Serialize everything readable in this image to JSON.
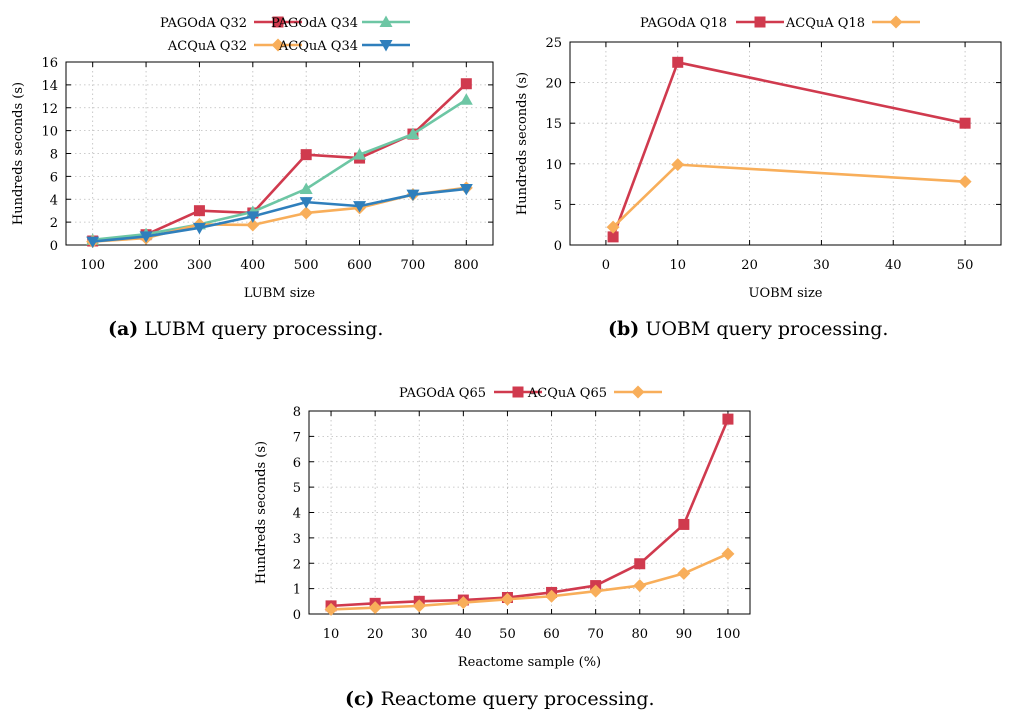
{
  "figure": {
    "captions": [
      {
        "tag": "(a)",
        "text": "LUBM query processing."
      },
      {
        "tag": "(b)",
        "text": "UOBM query processing."
      },
      {
        "tag": "(c)",
        "text": "Reactome query processing."
      }
    ]
  },
  "chart_data": [
    {
      "id": "a",
      "type": "line",
      "title": "",
      "xlabel": "LUBM size",
      "ylabel": "Hundreds seconds (s)",
      "x": [
        100,
        200,
        300,
        400,
        500,
        600,
        700,
        800
      ],
      "xticks": [
        100,
        200,
        300,
        400,
        500,
        600,
        700,
        800
      ],
      "xlim": [
        50,
        850
      ],
      "ylim": [
        0,
        16
      ],
      "yticks": [
        0,
        2,
        4,
        6,
        8,
        10,
        12,
        14,
        16
      ],
      "grid": true,
      "legend_placement": "top",
      "series": [
        {
          "name": "PAGOdA Q32",
          "color": "#d03a4e",
          "marker": "square",
          "values": [
            0.35,
            0.9,
            3.0,
            2.8,
            7.9,
            7.6,
            9.7,
            14.1
          ]
        },
        {
          "name": "PAGOdA Q34",
          "color": "#6dc6a4",
          "marker": "triangle-up",
          "values": [
            0.45,
            0.95,
            1.8,
            2.9,
            4.9,
            7.9,
            9.7,
            12.7
          ]
        },
        {
          "name": "ACQuA Q32",
          "color": "#f8ae5a",
          "marker": "diamond",
          "values": [
            0.3,
            0.6,
            1.8,
            1.75,
            2.8,
            3.25,
            4.4,
            5.0
          ]
        },
        {
          "name": "ACQuA Q34",
          "color": "#2f7fbc",
          "marker": "triangle-down",
          "values": [
            0.3,
            0.75,
            1.5,
            2.5,
            3.75,
            3.4,
            4.4,
            4.9
          ]
        }
      ]
    },
    {
      "id": "b",
      "type": "line",
      "title": "",
      "xlabel": "UOBM size",
      "ylabel": "Hundreds seconds (s)",
      "x": [
        1,
        10,
        50
      ],
      "xticks": [
        0,
        10,
        20,
        30,
        40,
        50
      ],
      "xlim": [
        -5,
        55
      ],
      "ylim": [
        0,
        25
      ],
      "yticks": [
        0,
        5,
        10,
        15,
        20,
        25
      ],
      "grid": true,
      "legend_placement": "top",
      "series": [
        {
          "name": "PAGOdA Q18",
          "color": "#d03a4e",
          "marker": "square",
          "values": [
            1.0,
            22.5,
            15.0
          ]
        },
        {
          "name": "ACQuA Q18",
          "color": "#f8ae5a",
          "marker": "diamond",
          "values": [
            2.2,
            9.9,
            7.8
          ]
        }
      ]
    },
    {
      "id": "c",
      "type": "line",
      "title": "",
      "xlabel": "Reactome sample (%)",
      "ylabel": "Hundreds seconds (s)",
      "x": [
        10,
        20,
        30,
        40,
        50,
        60,
        70,
        80,
        90,
        100
      ],
      "xticks": [
        10,
        20,
        30,
        40,
        50,
        60,
        70,
        80,
        90,
        100
      ],
      "xlim": [
        5,
        105
      ],
      "ylim": [
        0,
        8
      ],
      "yticks": [
        0,
        1,
        2,
        3,
        4,
        5,
        6,
        7,
        8
      ],
      "grid": true,
      "legend_placement": "top",
      "series": [
        {
          "name": "PAGOdA Q65",
          "color": "#d03a4e",
          "marker": "square",
          "values": [
            0.32,
            0.42,
            0.5,
            0.55,
            0.65,
            0.85,
            1.12,
            1.98,
            3.53,
            7.68
          ]
        },
        {
          "name": "ACQuA Q65",
          "color": "#f8ae5a",
          "marker": "diamond",
          "values": [
            0.18,
            0.25,
            0.32,
            0.45,
            0.58,
            0.7,
            0.9,
            1.12,
            1.6,
            2.37
          ]
        }
      ]
    }
  ]
}
